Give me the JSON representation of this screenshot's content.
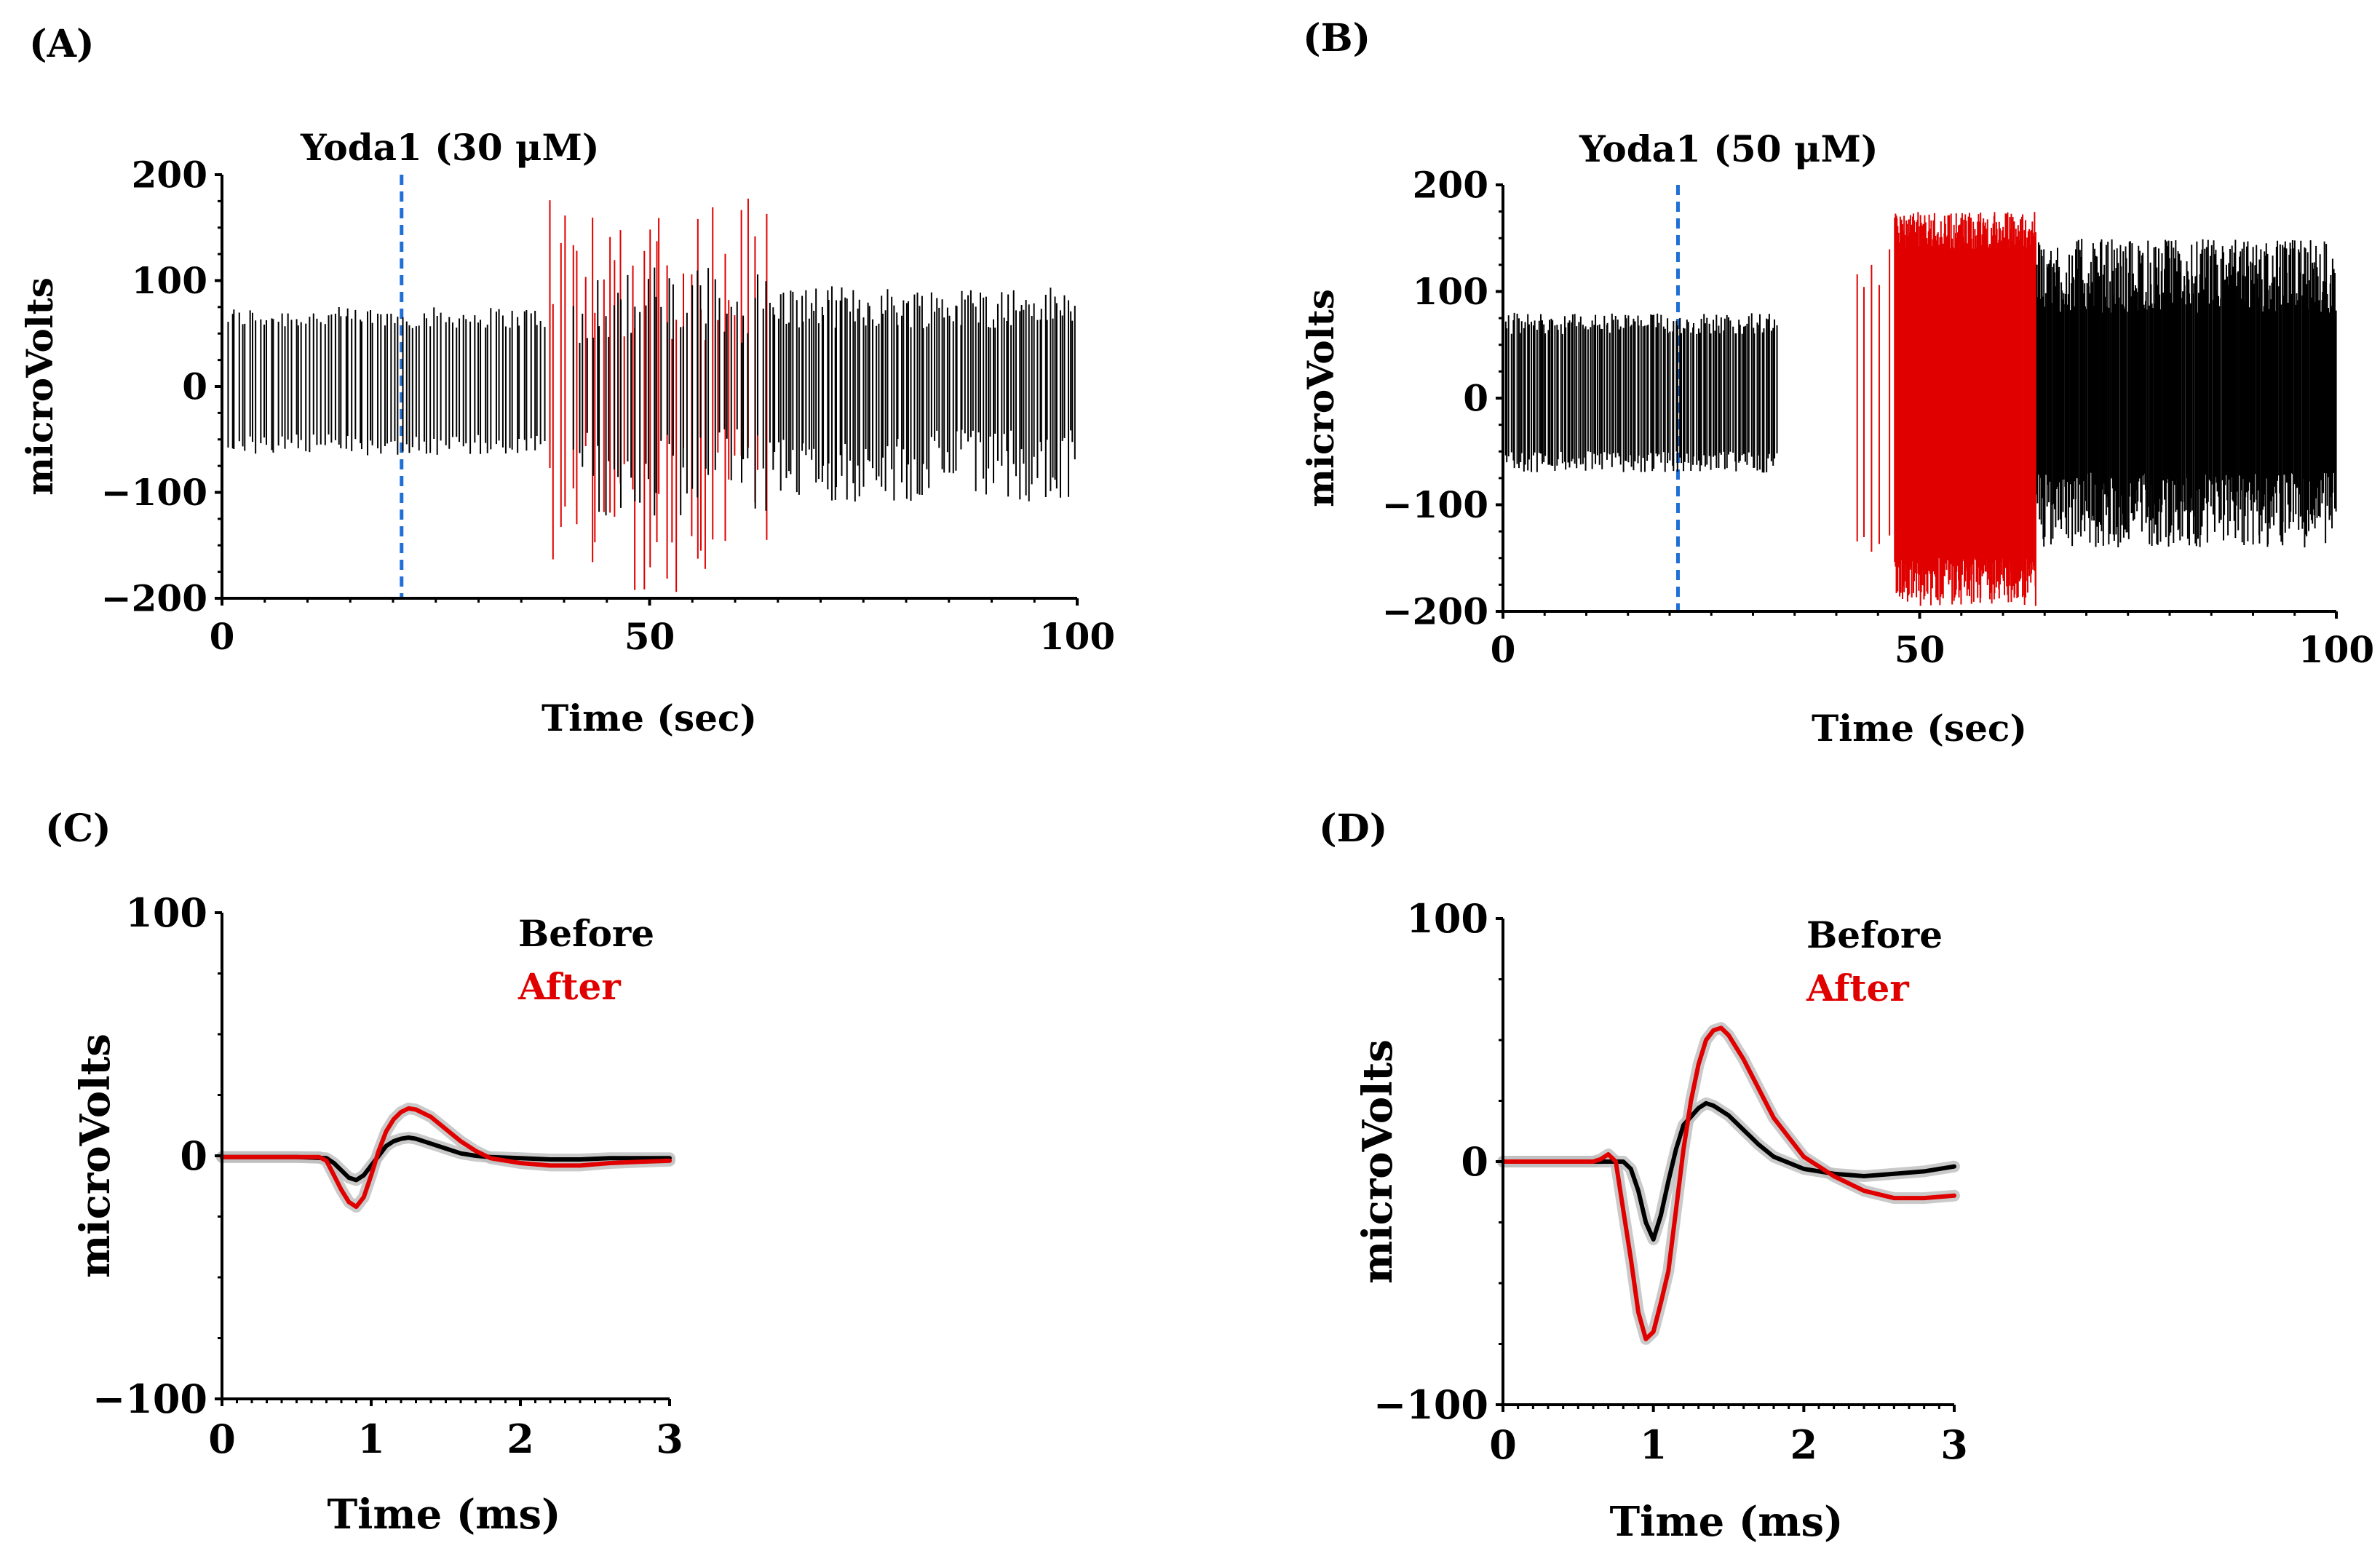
{
  "figure": {
    "panel_labels": [
      "(A)",
      "(B)",
      "(C)",
      "(D)"
    ]
  },
  "chart_data": [
    {
      "panel": "(A)",
      "type": "line",
      "title": "",
      "annotation": "Yoda1 (30 μM)",
      "annotation_x": 21,
      "xlabel": "Time (sec)",
      "ylabel": "microVolts",
      "xlim": [
        0,
        100
      ],
      "ylim": [
        -200,
        200
      ],
      "xticks": [
        0,
        50,
        100
      ],
      "yticks": [
        -200,
        -100,
        0,
        100,
        200
      ],
      "ytick_labels": [
        "−200",
        "−100",
        "0",
        "100",
        "200"
      ],
      "colors": {
        "before": "#000000",
        "after": "#e00000",
        "marker": "#1f6fd6"
      },
      "spike_train": {
        "segments": [
          {
            "start": 0.5,
            "end": 38,
            "color": "#000000",
            "count": 90,
            "high": [
              55,
              75
            ],
            "low": [
              -45,
              -65
            ]
          },
          {
            "start": 38,
            "end": 64,
            "color": "#e00000",
            "count": 38,
            "high": [
              40,
              190
            ],
            "low": [
              -50,
              -195
            ]
          },
          {
            "start": 41,
            "end": 64,
            "color": "#000000",
            "count": 45,
            "high": [
              40,
              115
            ],
            "low": [
              -40,
              -125
            ]
          },
          {
            "start": 64,
            "end": 100,
            "color": "#000000",
            "count": 120,
            "high": [
              55,
              95
            ],
            "low": [
              -40,
              -110
            ]
          }
        ]
      }
    },
    {
      "panel": "(B)",
      "type": "line",
      "title": "",
      "annotation": "Yoda1 (50 μM)",
      "annotation_x": 21,
      "xlabel": "Time (sec)",
      "ylabel": "microVolts",
      "xlim": [
        0,
        100
      ],
      "ylim": [
        -200,
        200
      ],
      "xticks": [
        0,
        50,
        100
      ],
      "yticks": [
        -200,
        -100,
        0,
        100,
        200
      ],
      "ytick_labels": [
        "−200",
        "−100",
        "0",
        "100",
        "200"
      ],
      "colors": {
        "before": "#000000",
        "after": "#e00000",
        "marker": "#1f6fd6"
      },
      "spike_train": {
        "segments": [
          {
            "start": 0,
            "end": 33,
            "color": "#000000",
            "count": 150,
            "high": [
              60,
              80
            ],
            "low": [
              -50,
              -70
            ]
          },
          {
            "start": 42,
            "end": 47,
            "color": "#e00000",
            "count": 5,
            "high": [
              100,
              140
            ],
            "low": [
              -120,
              -145
            ]
          },
          {
            "start": 47,
            "end": 64,
            "color": "#e00000",
            "count": 190,
            "high": [
              140,
              175
            ],
            "low": [
              -150,
              -195
            ]
          },
          {
            "start": 64,
            "end": 100,
            "color": "#000000",
            "count": 320,
            "high": [
              80,
              150
            ],
            "low": [
              -70,
              -140
            ]
          }
        ]
      }
    },
    {
      "panel": "(C)",
      "type": "line",
      "title": "",
      "xlabel": "Time (ms)",
      "ylabel": "microVolts",
      "xlim": [
        0,
        3
      ],
      "ylim": [
        -100,
        100
      ],
      "xticks": [
        0,
        1,
        2,
        3
      ],
      "yticks": [
        -100,
        0,
        100
      ],
      "ytick_labels": [
        "−100",
        "0",
        "100"
      ],
      "legend": [
        "Before",
        "After"
      ],
      "legend_position": "top-center",
      "series": [
        {
          "name": "Before",
          "color": "#000000",
          "x": [
            0,
            0.5,
            0.7,
            0.75,
            0.8,
            0.85,
            0.9,
            0.95,
            1.0,
            1.05,
            1.1,
            1.15,
            1.2,
            1.25,
            1.3,
            1.4,
            1.5,
            1.6,
            1.7,
            1.8,
            2.0,
            2.2,
            2.4,
            2.6,
            3.0
          ],
          "y": [
            -0.5,
            -0.5,
            -1,
            -3,
            -6,
            -9,
            -10,
            -8,
            -4,
            0,
            4,
            6,
            7,
            7.5,
            7,
            5,
            3,
            1,
            0,
            -0.5,
            -1,
            -1.5,
            -1.5,
            -1,
            -1
          ]
        },
        {
          "name": "After",
          "color": "#e00000",
          "x": [
            0,
            0.5,
            0.65,
            0.7,
            0.75,
            0.8,
            0.85,
            0.9,
            0.95,
            1.0,
            1.05,
            1.1,
            1.15,
            1.2,
            1.25,
            1.3,
            1.4,
            1.5,
            1.6,
            1.7,
            1.8,
            1.9,
            2.0,
            2.2,
            2.4,
            2.6,
            2.8,
            3.0
          ],
          "y": [
            -0.5,
            -0.5,
            -0.5,
            -2,
            -8,
            -14,
            -19,
            -21,
            -17,
            -8,
            2,
            10,
            15,
            18,
            19.5,
            19,
            16,
            11,
            6,
            2,
            -1,
            -2,
            -3,
            -4,
            -4,
            -3,
            -2.5,
            -2
          ]
        }
      ]
    },
    {
      "panel": "(D)",
      "type": "line",
      "title": "",
      "xlabel": "Time (ms)",
      "ylabel": "microVolts",
      "xlim": [
        0,
        3
      ],
      "ylim": [
        -100,
        100
      ],
      "xticks": [
        0,
        1,
        2,
        3
      ],
      "yticks": [
        -100,
        0,
        100
      ],
      "ytick_labels": [
        "−100",
        "0",
        "100"
      ],
      "legend": [
        "Before",
        "After"
      ],
      "legend_position": "top-center",
      "series": [
        {
          "name": "Before",
          "color": "#000000",
          "x": [
            0,
            0.5,
            0.7,
            0.8,
            0.85,
            0.9,
            0.95,
            1.0,
            1.05,
            1.1,
            1.15,
            1.2,
            1.3,
            1.35,
            1.4,
            1.5,
            1.6,
            1.7,
            1.8,
            2.0,
            2.2,
            2.4,
            2.6,
            2.8,
            3.0
          ],
          "y": [
            0,
            0,
            0,
            0,
            -3,
            -12,
            -25,
            -32,
            -22,
            -8,
            5,
            15,
            22,
            24,
            23,
            19,
            13,
            7,
            2,
            -3,
            -5,
            -6,
            -5,
            -4,
            -2
          ]
        },
        {
          "name": "After",
          "color": "#e00000",
          "x": [
            0,
            0.5,
            0.6,
            0.65,
            0.7,
            0.75,
            0.8,
            0.85,
            0.9,
            0.95,
            1.0,
            1.05,
            1.1,
            1.15,
            1.2,
            1.25,
            1.3,
            1.35,
            1.4,
            1.45,
            1.5,
            1.6,
            1.7,
            1.8,
            2.0,
            2.2,
            2.4,
            2.6,
            2.8,
            3.0
          ],
          "y": [
            0,
            0,
            0,
            1,
            3,
            0,
            -20,
            -40,
            -62,
            -73,
            -70,
            -58,
            -45,
            -20,
            5,
            25,
            40,
            50,
            54,
            55,
            52,
            42,
            30,
            18,
            2,
            -6,
            -12,
            -15,
            -15,
            -14
          ]
        }
      ]
    }
  ]
}
